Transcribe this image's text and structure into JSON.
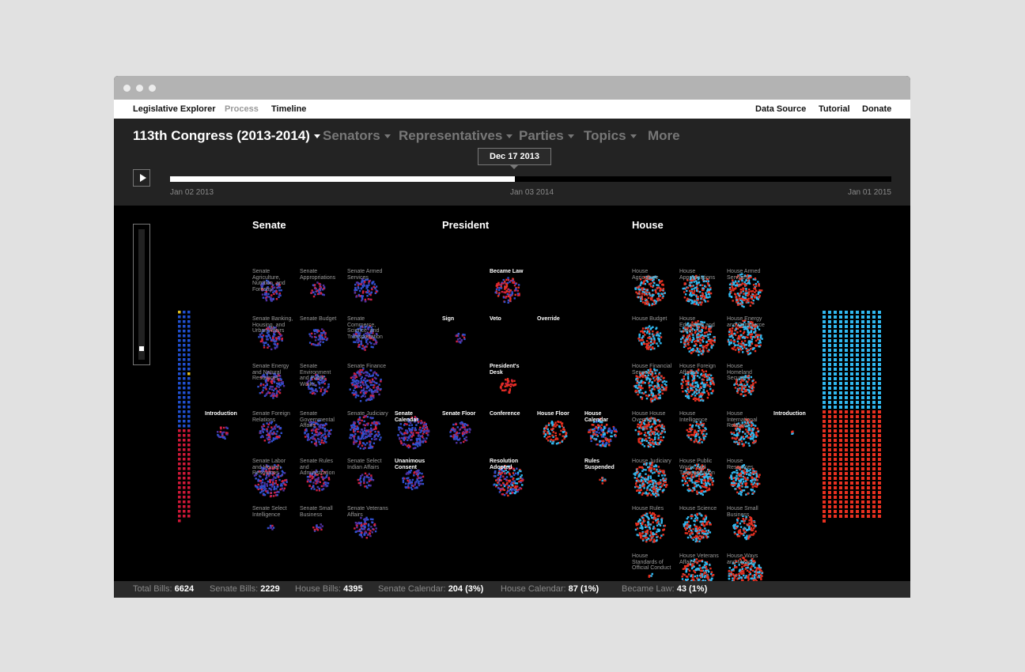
{
  "nav": {
    "left": [
      "Legislative Explorer",
      "Process",
      "Timeline"
    ],
    "right": [
      "Data Source",
      "Tutorial",
      "Donate"
    ]
  },
  "menu": [
    "113th Congress (2013-2014)",
    "Senators",
    "Representatives",
    "Parties",
    "Topics",
    "More"
  ],
  "timeline": {
    "current": "Dec 17 2013",
    "start": "Jan 02 2013",
    "middle": "Jan 03 2014",
    "end": "Jan 01 2015"
  },
  "headings": [
    "Senate",
    "President",
    "House"
  ],
  "senate_committees": [
    [
      "Senate Agriculture, Nutrition, and Forestry",
      "Senate Appropriations",
      "Senate Armed Services"
    ],
    [
      "Senate Banking, Housing, and Urban Affairs",
      "Senate Budget",
      "Senate Commerce, Science, and Transportation"
    ],
    [
      "Senate Energy and Natural Resources",
      "Senate Environment and Public Works",
      "Senate Finance"
    ],
    [
      "Senate Foreign Relations",
      "Senate Governmental Affairs",
      "Senate Judiciary"
    ],
    [
      "Senate Labor and Human Resources",
      "Senate Rules and Administration",
      "Senate Select Indian Affairs"
    ],
    [
      "Senate Select Intelligence",
      "Senate Small Business",
      "Senate Veterans Affairs"
    ]
  ],
  "house_committees": [
    [
      "House Agriculture",
      "House Appropriations",
      "House Armed Services"
    ],
    [
      "House Budget",
      "House Education and Labor",
      "House Energy and Commerce"
    ],
    [
      "House Financial Services",
      "House Foreign Affairs",
      "House Homeland Security"
    ],
    [
      "House House Oversight",
      "House Intelligence",
      "House International Relations"
    ],
    [
      "House Judiciary",
      "House Public Works and Transportation",
      "House Resources"
    ],
    [
      "House Rules",
      "House Science",
      "House Small Business"
    ],
    [
      "House Standards of Official Conduct",
      "House Veterans Affairs",
      "House Ways and Means"
    ]
  ],
  "process_nodes": [
    "Introduction",
    "Senate Calendar",
    "Unanimous Consent",
    "Senate Floor",
    "Became Law",
    "Sign",
    "Veto",
    "Override",
    "President's Desk",
    "Conference",
    "Resolution Adopted",
    "House Floor",
    "House Calendar",
    "Rules Suspended",
    "Introduction"
  ],
  "footer": [
    {
      "label": "Total Bills:",
      "value": "6624"
    },
    {
      "label": "Senate Bills:",
      "value": "2229"
    },
    {
      "label": "House Bills:",
      "value": "4395"
    },
    {
      "label": "Senate Calendar:",
      "value": "204 (3%)"
    },
    {
      "label": "House Calendar:",
      "value": "87 (1%)"
    },
    {
      "label": "Became Law:",
      "value": "43 (1%)"
    }
  ]
}
